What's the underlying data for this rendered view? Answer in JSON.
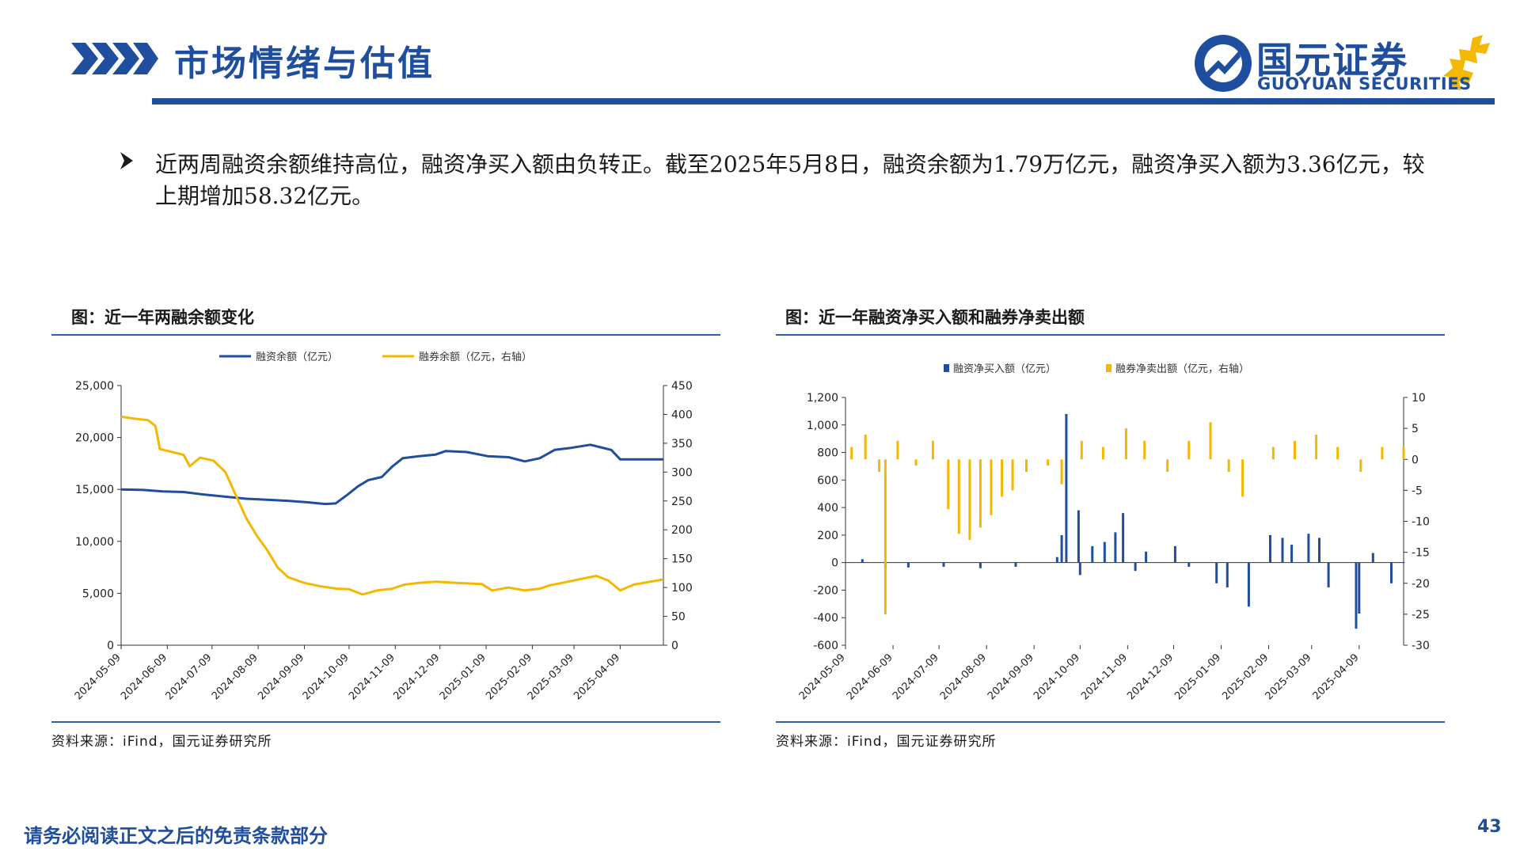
{
  "header": {
    "title": "市场情绪与估值",
    "logo_cn": "国元证券",
    "logo_en": "GUOYUAN SECURITIES",
    "brand_color": "#1f4e9e",
    "accent_color": "#f5b800"
  },
  "summary": "近两周融资余额维持高位，融资净买入额由负转正。截至2025年5月8日，融资余额为1.79万亿元，融资净买入额为3.36亿元，较上期增加58.32亿元。",
  "left_chart": {
    "title": "图：近一年两融余额变化",
    "source": "资料来源：iFind，国元证券研究所"
  },
  "right_chart": {
    "title": "图：近一年融资净买入额和融券净卖出额",
    "source": "资料来源：iFind，国元证券研究所"
  },
  "footer": {
    "note": "请务必阅读正文之后的免责条款部分",
    "page": "43"
  },
  "chart_data": [
    {
      "type": "line",
      "x_ticks": [
        "2024-05-09",
        "2024-06-09",
        "2024-07-09",
        "2024-08-09",
        "2024-09-09",
        "2024-10-09",
        "2024-11-09",
        "2024-12-09",
        "2025-01-09",
        "2025-02-09",
        "2025-03-09",
        "2025-04-09"
      ],
      "x_range": [
        "2024-05-09",
        "2025-05-08"
      ],
      "y_left": {
        "ticks": [
          "0",
          "5,000",
          "10,000",
          "15,000",
          "20,000",
          "25,000"
        ],
        "range": [
          0,
          25000
        ]
      },
      "y_right": {
        "ticks": [
          "0",
          "50",
          "100",
          "150",
          "200",
          "250",
          "300",
          "350",
          "400",
          "450"
        ],
        "range": [
          0,
          450
        ]
      },
      "legend_position": "top",
      "series": [
        {
          "name": "融资余额（亿元）",
          "axis": "left",
          "color": "#1f4e9e",
          "points": [
            [
              "2024-05-09",
              15000
            ],
            [
              "2024-05-24",
              14950
            ],
            [
              "2024-06-06",
              14800
            ],
            [
              "2024-06-20",
              14750
            ],
            [
              "2024-07-04",
              14500
            ],
            [
              "2024-07-18",
              14300
            ],
            [
              "2024-08-01",
              14100
            ],
            [
              "2024-08-15",
              14000
            ],
            [
              "2024-08-29",
              13900
            ],
            [
              "2024-09-12",
              13750
            ],
            [
              "2024-09-23",
              13600
            ],
            [
              "2024-09-30",
              13650
            ],
            [
              "2024-10-08",
              14500
            ],
            [
              "2024-10-15",
              15300
            ],
            [
              "2024-10-22",
              15900
            ],
            [
              "2024-10-31",
              16200
            ],
            [
              "2024-11-07",
              17200
            ],
            [
              "2024-11-14",
              18000
            ],
            [
              "2024-11-25",
              18200
            ],
            [
              "2024-12-06",
              18350
            ],
            [
              "2024-12-13",
              18700
            ],
            [
              "2024-12-27",
              18600
            ],
            [
              "2025-01-10",
              18200
            ],
            [
              "2025-01-24",
              18100
            ],
            [
              "2025-02-04",
              17700
            ],
            [
              "2025-02-14",
              18000
            ],
            [
              "2025-02-24",
              18800
            ],
            [
              "2025-03-07",
              19000
            ],
            [
              "2025-03-20",
              19300
            ],
            [
              "2025-04-03",
              18800
            ],
            [
              "2025-04-09",
              17900
            ],
            [
              "2025-04-20",
              17900
            ],
            [
              "2025-05-08",
              17900
            ]
          ]
        },
        {
          "name": "融券余额（亿元，右轴）",
          "axis": "right",
          "color": "#f5b800",
          "points": [
            [
              "2024-05-09",
              396
            ],
            [
              "2024-05-20",
              392
            ],
            [
              "2024-05-27",
              390
            ],
            [
              "2024-06-01",
              380
            ],
            [
              "2024-06-04",
              340
            ],
            [
              "2024-06-12",
              335
            ],
            [
              "2024-06-20",
              330
            ],
            [
              "2024-06-24",
              310
            ],
            [
              "2024-07-01",
              325
            ],
            [
              "2024-07-10",
              320
            ],
            [
              "2024-07-18",
              300
            ],
            [
              "2024-07-25",
              260
            ],
            [
              "2024-08-01",
              220
            ],
            [
              "2024-08-08",
              190
            ],
            [
              "2024-08-15",
              165
            ],
            [
              "2024-08-22",
              135
            ],
            [
              "2024-08-29",
              118
            ],
            [
              "2024-09-09",
              108
            ],
            [
              "2024-09-20",
              102
            ],
            [
              "2024-10-01",
              98
            ],
            [
              "2024-10-09",
              97
            ],
            [
              "2024-10-18",
              88
            ],
            [
              "2024-10-28",
              95
            ],
            [
              "2024-11-07",
              98
            ],
            [
              "2024-11-15",
              105
            ],
            [
              "2024-11-25",
              108
            ],
            [
              "2024-12-06",
              110
            ],
            [
              "2024-12-20",
              108
            ],
            [
              "2025-01-06",
              106
            ],
            [
              "2025-01-13",
              95
            ],
            [
              "2025-01-24",
              100
            ],
            [
              "2025-02-04",
              95
            ],
            [
              "2025-02-14",
              98
            ],
            [
              "2025-02-21",
              104
            ],
            [
              "2025-03-01",
              108
            ],
            [
              "2025-03-14",
              115
            ],
            [
              "2025-03-24",
              120
            ],
            [
              "2025-04-01",
              112
            ],
            [
              "2025-04-09",
              95
            ],
            [
              "2025-04-18",
              105
            ],
            [
              "2025-05-08",
              114
            ]
          ]
        }
      ]
    },
    {
      "type": "bar",
      "x_ticks": [
        "2024-05-09",
        "2024-06-09",
        "2024-07-09",
        "2024-08-09",
        "2024-09-09",
        "2024-10-09",
        "2024-11-09",
        "2024-12-09",
        "2025-01-09",
        "2025-02-09",
        "2025-03-09",
        "2025-04-09"
      ],
      "x_range": [
        "2024-05-09",
        "2025-05-08"
      ],
      "y_left": {
        "ticks": [
          "-600",
          "-400",
          "-200",
          "0",
          "200",
          "400",
          "600",
          "800",
          "1,000",
          "1,200"
        ],
        "range": [
          -600,
          1200
        ]
      },
      "y_right": {
        "ticks": [
          "-30",
          "-25",
          "-20",
          "-15",
          "-10",
          "-5",
          "0",
          "5",
          "10"
        ],
        "range": [
          -30,
          10
        ]
      },
      "legend_position": "top",
      "series": [
        {
          "name": "融资净买入额（亿元）",
          "axis": "left",
          "color": "#1f4e9e",
          "points": [
            [
              "2024-05-20",
              25
            ],
            [
              "2024-06-04",
              -40
            ],
            [
              "2024-06-19",
              -35
            ],
            [
              "2024-07-12",
              -30
            ],
            [
              "2024-08-05",
              -40
            ],
            [
              "2024-08-28",
              -30
            ],
            [
              "2024-09-24",
              40
            ],
            [
              "2024-09-27",
              200
            ],
            [
              "2024-09-30",
              1080
            ],
            [
              "2024-10-08",
              380
            ],
            [
              "2024-10-09",
              -90
            ],
            [
              "2024-10-17",
              120
            ],
            [
              "2024-10-25",
              150
            ],
            [
              "2024-11-01",
              220
            ],
            [
              "2024-11-06",
              360
            ],
            [
              "2024-11-14",
              -60
            ],
            [
              "2024-11-21",
              80
            ],
            [
              "2024-12-10",
              120
            ],
            [
              "2024-12-19",
              -30
            ],
            [
              "2025-01-06",
              -150
            ],
            [
              "2025-01-13",
              -180
            ],
            [
              "2025-01-27",
              -320
            ],
            [
              "2025-02-10",
              200
            ],
            [
              "2025-02-18",
              180
            ],
            [
              "2025-02-24",
              130
            ],
            [
              "2025-03-07",
              210
            ],
            [
              "2025-03-14",
              180
            ],
            [
              "2025-03-20",
              -180
            ],
            [
              "2025-04-07",
              -480
            ],
            [
              "2025-04-09",
              -370
            ],
            [
              "2025-04-18",
              70
            ],
            [
              "2025-04-30",
              -150
            ],
            [
              "2025-05-08",
              3.36
            ]
          ]
        },
        {
          "name": "融券净卖出额（亿元，右轴）",
          "axis": "right",
          "color": "#f5b800",
          "points": [
            [
              "2024-05-13",
              2
            ],
            [
              "2024-05-22",
              4
            ],
            [
              "2024-05-31",
              -2
            ],
            [
              "2024-06-04",
              -25
            ],
            [
              "2024-06-12",
              3
            ],
            [
              "2024-06-24",
              -1
            ],
            [
              "2024-07-05",
              3
            ],
            [
              "2024-07-15",
              -8
            ],
            [
              "2024-07-22",
              -12
            ],
            [
              "2024-07-29",
              -13
            ],
            [
              "2024-08-05",
              -11
            ],
            [
              "2024-08-12",
              -9
            ],
            [
              "2024-08-19",
              -6
            ],
            [
              "2024-08-26",
              -5
            ],
            [
              "2024-09-04",
              -2
            ],
            [
              "2024-09-18",
              -1
            ],
            [
              "2024-09-27",
              -4
            ],
            [
              "2024-10-10",
              3
            ],
            [
              "2024-10-24",
              2
            ],
            [
              "2024-11-08",
              5
            ],
            [
              "2024-11-20",
              3
            ],
            [
              "2024-12-05",
              -2
            ],
            [
              "2024-12-19",
              3
            ],
            [
              "2025-01-02",
              6
            ],
            [
              "2025-01-14",
              -2
            ],
            [
              "2025-01-23",
              -6
            ],
            [
              "2025-02-12",
              2
            ],
            [
              "2025-02-26",
              3
            ],
            [
              "2025-03-12",
              4
            ],
            [
              "2025-03-26",
              2
            ],
            [
              "2025-04-10",
              -2
            ],
            [
              "2025-04-24",
              2
            ],
            [
              "2025-05-08",
              2
            ]
          ]
        }
      ]
    }
  ]
}
